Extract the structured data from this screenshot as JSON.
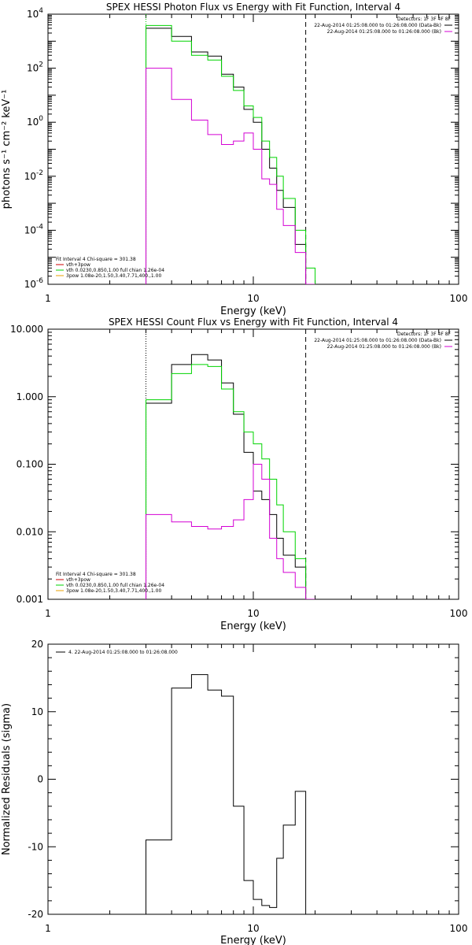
{
  "colors": {
    "black": "#000000",
    "green": "#00d400",
    "magenta": "#d400d4",
    "red": "#cc0000",
    "orange": "#e8a000"
  },
  "chart_data": [
    {
      "type": "line",
      "title": "SPEX HESSI Photon Flux vs Energy with Fit Function, Interval 4",
      "xlabel": "Energy (keV)",
      "ylabel": "photons s⁻¹ cm⁻² keV⁻¹",
      "xscale": "log",
      "yscale": "log",
      "xlim": [
        1,
        100
      ],
      "ylim": [
        1e-06,
        10000
      ],
      "x_tick_labels": [
        "1",
        "10",
        "100"
      ],
      "y_ticks": [
        {
          "value": 10000,
          "base": "10",
          "exp": "4"
        },
        {
          "value": 100,
          "base": "10",
          "exp": "2"
        },
        {
          "value": 1,
          "base": "10",
          "exp": "0"
        },
        {
          "value": 0.01,
          "base": "10",
          "exp": "-2"
        },
        {
          "value": 0.0001,
          "base": "10",
          "exp": "-4"
        },
        {
          "value": 1e-06,
          "base": "10",
          "exp": "-6"
        }
      ],
      "vlines": [
        {
          "x": 3,
          "style": "dotted-green"
        },
        {
          "x": 18,
          "style": "dashed-black"
        }
      ],
      "top_legend": {
        "header": "Detectors: 1F 3F 4F 8F",
        "entries": [
          {
            "text": "22-Aug-2014 01:25:08.000 to 01:26:08.000 (Data-Bk)",
            "color": "black"
          },
          {
            "text": "22-Aug-2014 01:25:08.000 to 01:26:08.000 (Bk)",
            "color": "magenta"
          }
        ]
      },
      "fit_legend": {
        "header": "Fit Interval  4    Chi-square = 301.38",
        "entries": [
          {
            "text": "vth+3pow",
            "color": "red"
          },
          {
            "text": "vth 0.0230,0.850,1.00  full chian 1.26e-04",
            "color": "green"
          },
          {
            "text": "3pow  1.08e-20,1.50,3.40,7.71,400.,1.00",
            "color": "orange"
          }
        ]
      },
      "x_edges": [
        3,
        4,
        5,
        6,
        7,
        8,
        9,
        10,
        11,
        12,
        13,
        14,
        16,
        18,
        20
      ],
      "series": [
        {
          "color": "black",
          "values": [
            3000,
            1500,
            400,
            280,
            60,
            20,
            3,
            1.0,
            0.1,
            0.02,
            0.003,
            0.0007,
            3e-05,
            1e-06
          ]
        },
        {
          "color": "green",
          "values": [
            3800,
            1000,
            300,
            200,
            50,
            15,
            4,
            1.5,
            0.2,
            0.05,
            0.01,
            0.0015,
            0.0001,
            4e-06
          ]
        },
        {
          "color": "magenta",
          "values": [
            100,
            7,
            1.2,
            0.35,
            0.15,
            0.2,
            0.4,
            0.1,
            0.008,
            0.005,
            0.0006,
            0.00015,
            1.5e-05,
            1e-06
          ]
        }
      ]
    },
    {
      "type": "line",
      "title": "SPEX HESSI Count Flux vs Energy with Fit Function, Interval 4",
      "xlabel": "Energy (keV)",
      "ylabel": "",
      "xscale": "log",
      "yscale": "log",
      "xlim": [
        1,
        100
      ],
      "ylim": [
        0.001,
        10
      ],
      "x_tick_labels": [
        "1",
        "10",
        "100"
      ],
      "y_ticks": [
        {
          "value": 10,
          "label": "10.000"
        },
        {
          "value": 1,
          "label": "1.000"
        },
        {
          "value": 0.1,
          "label": "0.100"
        },
        {
          "value": 0.01,
          "label": "0.010"
        },
        {
          "value": 0.001,
          "label": "0.001"
        }
      ],
      "vlines": [
        {
          "x": 3,
          "style": "dotted-black"
        },
        {
          "x": 18,
          "style": "dashed-black"
        }
      ],
      "top_legend": {
        "header": "Detectors: 1F 3F 4F 8F",
        "entries": [
          {
            "text": "22-Aug-2014 01:25:08.000 to 01:26:08.000 (Data-Bk)",
            "color": "black"
          },
          {
            "text": "22-Aug-2014 01:25:08.000 to 01:26:08.000 (Bk)",
            "color": "magenta"
          }
        ]
      },
      "fit_legend": {
        "header": "Fit Interval  4    Chi-square = 301.38",
        "entries": [
          {
            "text": "vth+3pow",
            "color": "red"
          },
          {
            "text": "vth 0.0230,0.850,1.00  full chian 1.26e-04",
            "color": "green"
          },
          {
            "text": "3pow  1.08e-20,1.50,3.40,7.71,400.,1.00",
            "color": "orange"
          }
        ]
      },
      "x_edges": [
        3,
        4,
        5,
        6,
        7,
        8,
        9,
        10,
        11,
        12,
        13,
        14,
        16,
        18,
        20
      ],
      "series": [
        {
          "color": "black",
          "values": [
            0.8,
            3.0,
            4.2,
            3.5,
            1.6,
            0.55,
            0.15,
            0.04,
            0.03,
            0.018,
            0.008,
            0.0045,
            0.003,
            0.001
          ]
        },
        {
          "color": "green",
          "values": [
            0.9,
            2.2,
            3.0,
            2.8,
            1.3,
            0.6,
            0.3,
            0.2,
            0.12,
            0.06,
            0.025,
            0.01,
            0.004,
            0.001
          ]
        },
        {
          "color": "magenta",
          "values": [
            0.018,
            0.014,
            0.012,
            0.011,
            0.012,
            0.015,
            0.03,
            0.1,
            0.06,
            0.008,
            0.004,
            0.0025,
            0.0015,
            0.001
          ]
        }
      ]
    },
    {
      "type": "line",
      "title": "",
      "xlabel": "Energy (keV)",
      "ylabel": "Normalized Residuals (sigma)",
      "xscale": "log",
      "yscale": "linear",
      "xlim": [
        1,
        100
      ],
      "ylim": [
        -20,
        20
      ],
      "x_tick_labels": [
        "1",
        "10",
        "100"
      ],
      "y_ticks": [
        {
          "value": 20,
          "label": "20"
        },
        {
          "value": 10,
          "label": "10"
        },
        {
          "value": 0,
          "label": "0"
        },
        {
          "value": -10,
          "label": "-10"
        },
        {
          "value": -20,
          "label": "-20"
        }
      ],
      "top_legend": {
        "header": "",
        "entries": [
          {
            "text": "4. 22-Aug-2014 01:25:08.000 to 01:26:08.000",
            "color": "black"
          }
        ]
      },
      "x_edges": [
        3,
        4,
        5,
        6,
        7,
        8,
        9,
        10,
        11,
        12,
        13,
        14,
        16,
        18
      ],
      "series": [
        {
          "color": "black",
          "values": [
            -9,
            13.5,
            15.5,
            13.2,
            12.3,
            -4,
            -15,
            -17.8,
            -18.7,
            -19,
            -11.7,
            -6.8,
            -1.8
          ]
        }
      ]
    }
  ]
}
